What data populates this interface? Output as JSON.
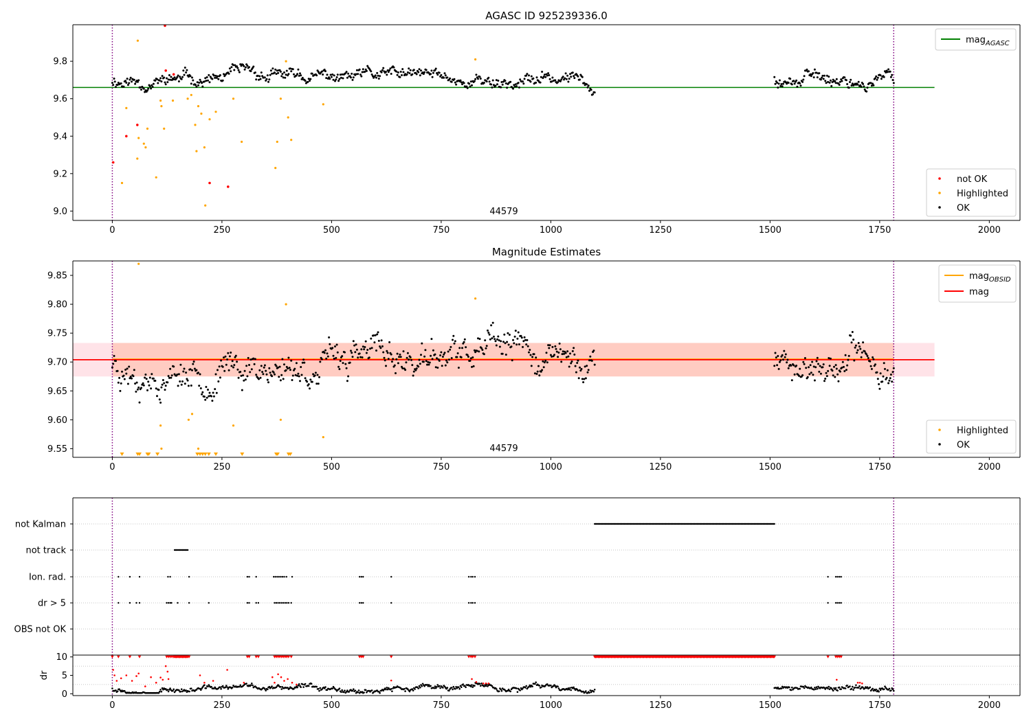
{
  "chart_data": [
    {
      "type": "scatter",
      "title": "AGASC ID 925239336.0",
      "annotation": "44579",
      "xlim": [
        -90,
        2070
      ],
      "ylim": [
        8.95,
        9.995
      ],
      "x_ticks": [
        0,
        250,
        500,
        750,
        1000,
        1250,
        1500,
        1750,
        2000
      ],
      "y_ticks": [
        9.0,
        9.2,
        9.4,
        9.6,
        9.8
      ],
      "y_tick_labels": [
        "9.0",
        "9.2",
        "9.4",
        "9.6",
        "9.8"
      ],
      "vlines": [
        0,
        1782
      ],
      "hline": {
        "name": "mag_AGASC",
        "label_base": "mag",
        "label_sub": "AGASC",
        "y": 9.66,
        "x_range": [
          -90,
          1875
        ],
        "color": "#008000"
      },
      "legend_lines": [
        {
          "base": "mag",
          "sub": "AGASC",
          "color": "#008000"
        }
      ],
      "legend_points": [
        {
          "name": "not OK",
          "color": "#ff0000"
        },
        {
          "name": "Highlighted",
          "color": "#ffa500"
        },
        {
          "name": "OK",
          "color": "#000000"
        }
      ],
      "ok_segments": [
        {
          "x": [
            0,
            1100
          ],
          "base": 9.7
        },
        {
          "x": [
            1510,
            1782
          ],
          "base": 9.71
        }
      ],
      "highlighted_points": [
        [
          58,
          9.91
        ],
        [
          22,
          9.15
        ],
        [
          32,
          9.55
        ],
        [
          57,
          9.28
        ],
        [
          60,
          9.39
        ],
        [
          72,
          9.36
        ],
        [
          76,
          9.34
        ],
        [
          80,
          9.44
        ],
        [
          100,
          9.18
        ],
        [
          110,
          9.59
        ],
        [
          112,
          9.56
        ],
        [
          118,
          9.44
        ],
        [
          138,
          9.59
        ],
        [
          172,
          9.6
        ],
        [
          180,
          9.62
        ],
        [
          189,
          9.46
        ],
        [
          192,
          9.32
        ],
        [
          196,
          9.56
        ],
        [
          203,
          9.52
        ],
        [
          210,
          9.34
        ],
        [
          212,
          9.03
        ],
        [
          222,
          9.49
        ],
        [
          236,
          9.53
        ],
        [
          276,
          9.6
        ],
        [
          295,
          9.37
        ],
        [
          372,
          9.23
        ],
        [
          376,
          9.37
        ],
        [
          384,
          9.6
        ],
        [
          396,
          9.8
        ],
        [
          401,
          9.5
        ],
        [
          408,
          9.38
        ],
        [
          481,
          9.57
        ],
        [
          828,
          9.81
        ]
      ],
      "not_ok_points": [
        [
          2,
          9.26
        ],
        [
          32,
          9.4
        ],
        [
          57,
          9.46
        ],
        [
          120,
          9.99
        ],
        [
          122,
          9.75
        ],
        [
          140,
          9.73
        ],
        [
          222,
          9.15
        ],
        [
          264,
          9.13
        ]
      ]
    },
    {
      "type": "scatter",
      "title": "Magnitude Estimates",
      "annotation": "44579",
      "xlim": [
        -90,
        2070
      ],
      "ylim": [
        9.535,
        9.875
      ],
      "x_ticks": [
        0,
        250,
        500,
        750,
        1000,
        1250,
        1500,
        1750,
        2000
      ],
      "y_ticks": [
        9.55,
        9.6,
        9.65,
        9.7,
        9.75,
        9.8,
        9.85
      ],
      "y_tick_labels": [
        "9.55",
        "9.60",
        "9.65",
        "9.70",
        "9.75",
        "9.80",
        "9.85"
      ],
      "vlines": [
        0,
        1782
      ],
      "band": {
        "y": [
          9.675,
          9.733
        ],
        "x_range": [
          -90,
          1875
        ],
        "color": "#ffc0cb"
      },
      "band_data": {
        "y": [
          9.675,
          9.733
        ],
        "x_range": [
          0,
          1782
        ],
        "color": "#ffa07a"
      },
      "lines": [
        {
          "name": "mag_OBSID",
          "y": 9.705,
          "x_range": [
            0,
            1782
          ],
          "color": "#ffa500"
        },
        {
          "name": "mag",
          "y": 9.704,
          "x_range": [
            -90,
            1875
          ],
          "color": "#ff0000"
        }
      ],
      "legend_lines": [
        {
          "base": "mag",
          "sub": "OBSID",
          "color": "#ffa500"
        },
        {
          "base": "mag",
          "sub": "",
          "color": "#ff0000"
        }
      ],
      "legend_points": [
        {
          "name": "Highlighted",
          "color": "#ffa500"
        },
        {
          "name": "OK",
          "color": "#000000"
        }
      ],
      "ok_segments": [
        {
          "x": [
            0,
            1100
          ],
          "base": 9.7
        },
        {
          "x": [
            1510,
            1782
          ],
          "base": 9.7
        }
      ],
      "highlighted_points": [
        [
          60,
          9.87
        ],
        [
          110,
          9.59
        ],
        [
          112,
          9.55
        ],
        [
          174,
          9.6
        ],
        [
          182,
          9.61
        ],
        [
          196,
          9.55
        ],
        [
          276,
          9.59
        ],
        [
          384,
          9.6
        ],
        [
          396,
          9.8
        ],
        [
          481,
          9.57
        ],
        [
          828,
          9.81
        ]
      ],
      "out_of_range_markers": [
        22,
        58,
        62,
        80,
        83,
        103,
        194,
        200,
        206,
        212,
        220,
        236,
        296,
        374,
        377,
        402,
        406
      ]
    },
    {
      "type": "scatter",
      "title": "",
      "xlim": [
        -90,
        2070
      ],
      "x_ticks": [
        0,
        250,
        500,
        750,
        1000,
        1250,
        1500,
        1750,
        2000
      ],
      "vlines": [
        0,
        1782
      ],
      "categories": [
        "not Kalman",
        "not track",
        "Ion. rad.",
        "dr > 5",
        "OBS not OK"
      ],
      "runs": {
        "not Kalman": [
          [
            1100,
            1510
          ]
        ],
        "not track": [
          [
            142,
            172
          ]
        ]
      },
      "flag_points": {
        "Ion. rad.": [
          14,
          40,
          62,
          127,
          132,
          175,
          308,
          312,
          328,
          368,
          372,
          376,
          380,
          384,
          388,
          392,
          397,
          410,
          564,
          568,
          572,
          636,
          813,
          818,
          822,
          827,
          1632,
          1650,
          1654,
          1658,
          1662
        ],
        "dr > 5": [
          14,
          40,
          55,
          62,
          124,
          128,
          132,
          135,
          149,
          175,
          220,
          308,
          312,
          328,
          333,
          370,
          374,
          378,
          382,
          386,
          390,
          394,
          398,
          402,
          408,
          564,
          568,
          572,
          636,
          813,
          818,
          822,
          827,
          1632,
          1650,
          1654,
          1658,
          1662
        ]
      }
    },
    {
      "type": "scatter",
      "title": "",
      "ylabel": "dr",
      "xlim": [
        -90,
        2070
      ],
      "ylim": [
        -0.5,
        10.5
      ],
      "x_ticks": [
        0,
        250,
        500,
        750,
        1000,
        1250,
        1500,
        1750,
        2000
      ],
      "x_tick_labels": [
        "0",
        "250",
        "500",
        "750",
        "1000",
        "1250",
        "1500",
        "1750",
        "2000"
      ],
      "y_ticks": [
        0,
        5,
        10
      ],
      "y_tick_labels": [
        "0",
        "5",
        "10"
      ],
      "vlines": [
        0,
        1782
      ],
      "capped_runs": [
        [
          140,
          172
        ],
        [
          1100,
          1510
        ]
      ],
      "capped_points": [
        0,
        14,
        40,
        62,
        124,
        128,
        132,
        136,
        175,
        308,
        312,
        328,
        333,
        370,
        374,
        378,
        382,
        386,
        390,
        394,
        398,
        402,
        408,
        564,
        568,
        572,
        636,
        813,
        818,
        822,
        827,
        1632,
        1650,
        1654,
        1658,
        1662
      ],
      "dr_segments": [
        {
          "x": [
            0,
            1100
          ],
          "base": 1.5
        },
        {
          "x": [
            1510,
            1782
          ],
          "base": 1.3
        }
      ],
      "red_points": [
        [
          2,
          6.5
        ],
        [
          5,
          5.0
        ],
        [
          10,
          3.5
        ],
        [
          20,
          4.2
        ],
        [
          32,
          5.0
        ],
        [
          45,
          3.5
        ],
        [
          55,
          4.8
        ],
        [
          60,
          5.5
        ],
        [
          75,
          2.0
        ],
        [
          88,
          4.5
        ],
        [
          100,
          3.0
        ],
        [
          110,
          4.4
        ],
        [
          115,
          3.8
        ],
        [
          122,
          7.5
        ],
        [
          126,
          6.0
        ],
        [
          128,
          4.0
        ],
        [
          200,
          5.0
        ],
        [
          210,
          3.0
        ],
        [
          230,
          3.5
        ],
        [
          262,
          6.5
        ],
        [
          300,
          3.0
        ],
        [
          365,
          4.5
        ],
        [
          370,
          3.0
        ],
        [
          378,
          5.3
        ],
        [
          385,
          4.5
        ],
        [
          392,
          3.5
        ],
        [
          400,
          4.0
        ],
        [
          410,
          3.0
        ],
        [
          420,
          2.5
        ],
        [
          636,
          3.6
        ],
        [
          820,
          4.0
        ],
        [
          830,
          3.2
        ],
        [
          846,
          2.8
        ],
        [
          852,
          2.8
        ],
        [
          858,
          2.8
        ],
        [
          1652,
          3.8
        ],
        [
          1700,
          3.0
        ],
        [
          1705,
          3.0
        ],
        [
          1710,
          2.8
        ]
      ]
    }
  ]
}
